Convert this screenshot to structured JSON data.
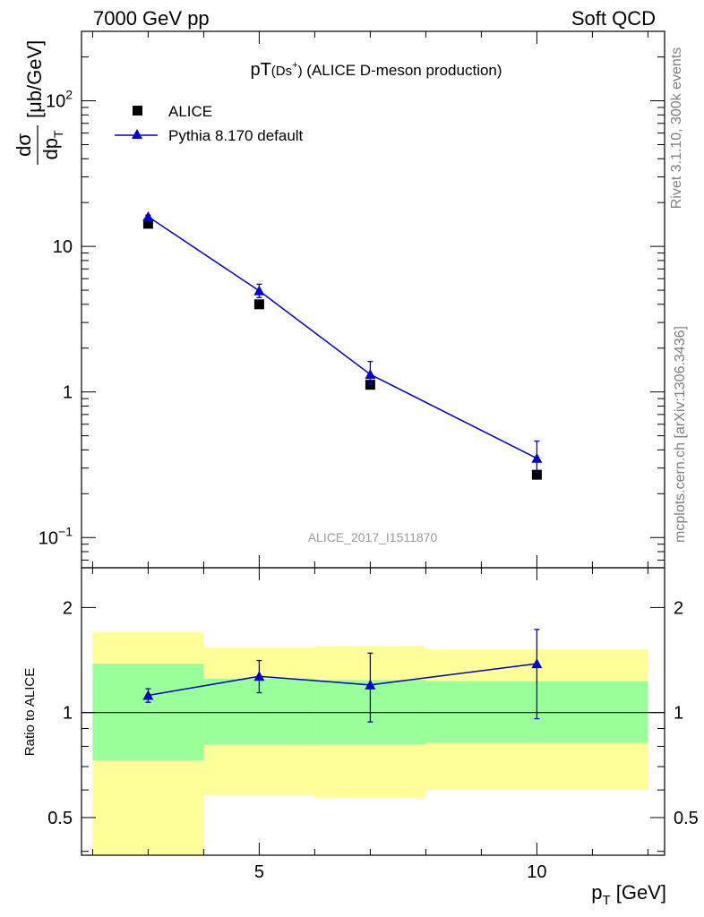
{
  "header": {
    "left": "7000 GeV pp",
    "right": "Soft QCD"
  },
  "side_text": {
    "rivet": "Rivet 3.1.10,  300k events",
    "mcplots": "mcplots.cern.ch [arXiv:1306.3436]"
  },
  "chart_data": [
    {
      "type": "scatter",
      "title_main": "pT",
      "title_paren": "(Ds",
      "title_sup": "+",
      "title_close": ")",
      "title_rest": " (ALICE D-meson production)",
      "watermark": "ALICE_2017_I1511870",
      "ylabel_num": "dσ",
      "ylabel_den": "dp",
      "ylabel_sub": "T",
      "ylabel_unit": "[μb/GeV]",
      "yscale": "log",
      "xlim": [
        1.8,
        12.3
      ],
      "ylim": [
        0.062,
        300
      ],
      "y_ticks": [
        {
          "value": 0.1,
          "base": "10",
          "exp": "−1"
        },
        {
          "value": 1,
          "base": "1",
          "exp": ""
        },
        {
          "value": 10,
          "base": "10",
          "exp": ""
        },
        {
          "value": 100,
          "base": "10",
          "exp": "2"
        }
      ],
      "legend_position": "top-left",
      "series": [
        {
          "name": "ALICE",
          "marker": "square",
          "color": "#000000",
          "x": [
            3,
            5,
            7,
            10
          ],
          "y": [
            14.3,
            4.0,
            1.12,
            0.27
          ]
        },
        {
          "name": "Pythia 8.170 default",
          "marker": "triangle",
          "color": "#0000cc",
          "x": [
            3,
            5,
            7,
            10
          ],
          "y": [
            16.0,
            4.95,
            1.32,
            0.35
          ],
          "err_lo": [
            0.4,
            0.5,
            0.18,
            0.07
          ],
          "err_hi": [
            0.4,
            0.55,
            0.3,
            0.11
          ]
        }
      ]
    },
    {
      "type": "scatter",
      "ylabel": "Ratio to ALICE",
      "xlabel_main": "p",
      "xlabel_sub": "T",
      "xlabel_unit": " [GeV]",
      "yscale": "log",
      "xlim": [
        1.8,
        12.3
      ],
      "ylim": [
        0.39,
        2.6
      ],
      "x_ticks": [
        {
          "value": 5,
          "label": "5"
        },
        {
          "value": 10,
          "label": "10"
        }
      ],
      "y_ticks": [
        {
          "value": 0.5,
          "label": "0.5"
        },
        {
          "value": 1,
          "label": "1"
        },
        {
          "value": 2,
          "label": "2"
        }
      ],
      "bands": [
        {
          "x0": 2,
          "x1": 4,
          "yellow": [
            0.33,
            1.7
          ],
          "green": [
            0.73,
            1.38
          ]
        },
        {
          "x0": 4,
          "x1": 6,
          "yellow": [
            0.58,
            1.54
          ],
          "green": [
            0.81,
            1.25
          ]
        },
        {
          "x0": 6,
          "x1": 8,
          "yellow": [
            0.57,
            1.55
          ],
          "green": [
            0.81,
            1.24
          ]
        },
        {
          "x0": 8,
          "x1": 12,
          "yellow": [
            0.6,
            1.52
          ],
          "green": [
            0.82,
            1.23
          ]
        }
      ],
      "band_colors": {
        "yellow": "#ffff99",
        "green": "#99ff99"
      },
      "series": [
        {
          "name": "Pythia 8.170 default",
          "color": "#0000cc",
          "x": [
            3,
            5,
            7,
            10
          ],
          "y": [
            1.12,
            1.27,
            1.2,
            1.38
          ],
          "err_lo": [
            0.05,
            0.13,
            0.26,
            0.42
          ],
          "err_hi": [
            0.05,
            0.14,
            0.28,
            0.35
          ]
        }
      ]
    }
  ]
}
